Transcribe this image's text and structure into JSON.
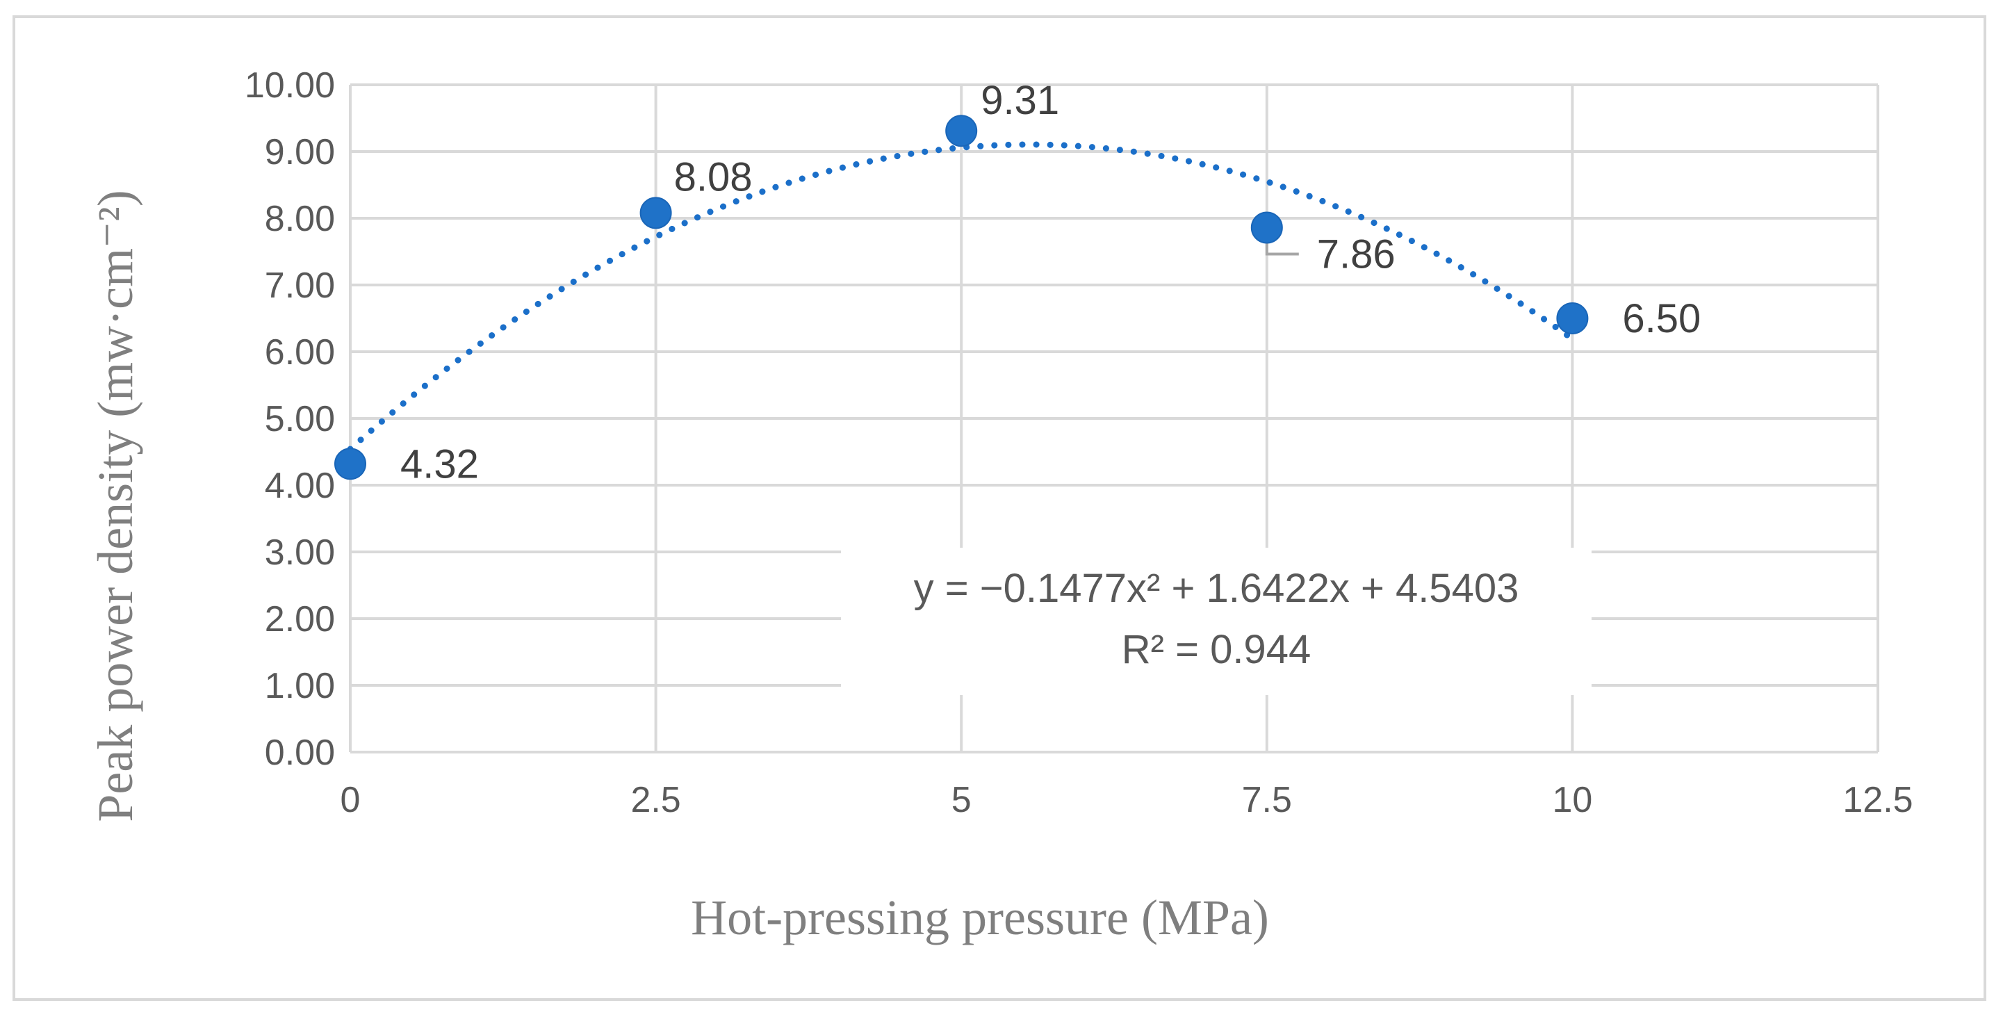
{
  "chart_data": {
    "type": "scatter",
    "title": "",
    "xlabel": "Hot-pressing pressure (MPa)",
    "ylabel": "Peak power density (mw·cm⁻²)",
    "xlim": [
      0,
      12.5
    ],
    "ylim": [
      0,
      10
    ],
    "x_ticks": [
      "0",
      "2.5",
      "5",
      "7.5",
      "10",
      "12.5"
    ],
    "x_tick_values": [
      0,
      2.5,
      5,
      7.5,
      10,
      12.5
    ],
    "y_ticks": [
      "0.00",
      "1.00",
      "2.00",
      "3.00",
      "4.00",
      "5.00",
      "6.00",
      "7.00",
      "8.00",
      "9.00",
      "10.00"
    ],
    "y_tick_values": [
      0,
      1,
      2,
      3,
      4,
      5,
      6,
      7,
      8,
      9,
      10
    ],
    "grid": true,
    "series": [
      {
        "name": "Peak power density",
        "x": [
          0,
          2.5,
          5,
          7.5,
          10
        ],
        "y": [
          4.32,
          8.08,
          9.31,
          7.86,
          6.5
        ],
        "labels": [
          "4.32",
          "8.08",
          "9.31",
          "7.86",
          "6.50"
        ]
      }
    ],
    "trendline": {
      "type": "polynomial-order-2",
      "coefficients": {
        "a": -0.1477,
        "b": 1.6422,
        "c": 4.5403
      },
      "equation": "y = −0.1477x² + 1.6422x + 4.5403",
      "r_squared": "R² = 0.944"
    },
    "colors": {
      "points": "#1f72c8",
      "trend": "#1b6fc9",
      "grid": "#d9d9d9"
    }
  }
}
